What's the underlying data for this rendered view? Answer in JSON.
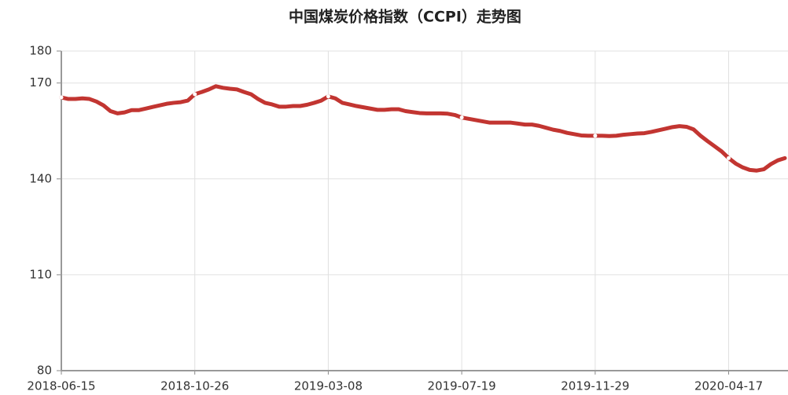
{
  "chart_data": {
    "type": "line",
    "title": "中国煤炭价格指数（CCPI）走势图",
    "categories": [
      "2018-06-15",
      null,
      null,
      null,
      null,
      null,
      null,
      null,
      null,
      null,
      null,
      null,
      null,
      null,
      null,
      null,
      null,
      null,
      null,
      "2018-10-26",
      null,
      null,
      null,
      null,
      null,
      null,
      null,
      null,
      null,
      null,
      null,
      null,
      null,
      null,
      null,
      null,
      null,
      null,
      "2019-03-08",
      null,
      null,
      null,
      null,
      null,
      null,
      null,
      null,
      null,
      null,
      null,
      null,
      null,
      null,
      null,
      null,
      null,
      null,
      "2019-07-19",
      null,
      null,
      null,
      null,
      null,
      null,
      null,
      null,
      null,
      null,
      null,
      null,
      null,
      null,
      null,
      null,
      null,
      null,
      "2019-11-29",
      null,
      null,
      null,
      null,
      null,
      null,
      null,
      null,
      null,
      null,
      null,
      null,
      null,
      null,
      null,
      null,
      null,
      null,
      "2020-04-17",
      null,
      null,
      null,
      null,
      null,
      null,
      null,
      null
    ],
    "series": [
      {
        "name": "CCPI",
        "color": "#c23531",
        "values": [
          165.5,
          165,
          165,
          165.2,
          165,
          164.2,
          163,
          161.2,
          160.5,
          160.8,
          161.5,
          161.5,
          162,
          162.5,
          163,
          163.5,
          163.8,
          164,
          164.5,
          166.5,
          167.2,
          168,
          169,
          168.5,
          168.2,
          168,
          167.2,
          166.5,
          165,
          163.8,
          163.3,
          162.6,
          162.6,
          162.8,
          162.8,
          163.2,
          163.8,
          164.5,
          165.8,
          165.2,
          163.8,
          163.3,
          162.8,
          162.4,
          162,
          161.6,
          161.6,
          161.8,
          161.8,
          161.2,
          160.9,
          160.6,
          160.5,
          160.5,
          160.5,
          160.4,
          160,
          159.2,
          158.8,
          158.4,
          158,
          157.6,
          157.6,
          157.6,
          157.6,
          157.3,
          157,
          157,
          156.6,
          156,
          155.4,
          155,
          154.4,
          154,
          153.6,
          153.5,
          153.5,
          153.5,
          153.4,
          153.5,
          153.8,
          154,
          154.2,
          154.3,
          154.7,
          155.2,
          155.7,
          156.2,
          156.5,
          156.3,
          155.5,
          153.5,
          151.8,
          150.2,
          148.6,
          146.5,
          144.8,
          143.6,
          142.8,
          142.6,
          143,
          144.6,
          145.8,
          146.5
        ]
      }
    ],
    "ylim": [
      80,
      180
    ],
    "yticks": [
      80,
      110,
      140,
      170,
      180
    ],
    "grid": true
  }
}
